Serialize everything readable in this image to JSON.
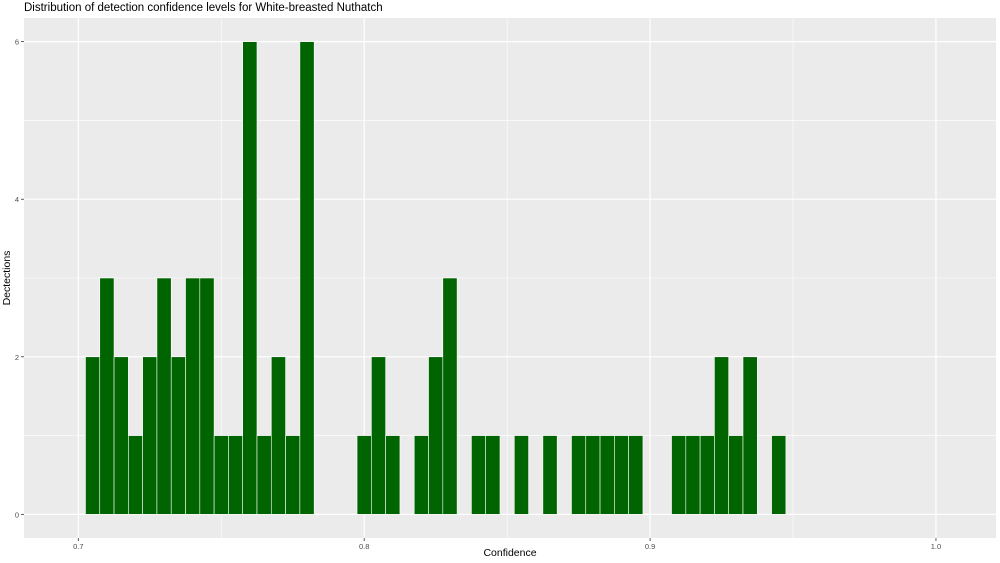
{
  "chart_data": {
    "type": "bar",
    "title": "Distribution of detection confidence levels for White-breasted Nuthatch",
    "xlabel": "Confidence",
    "ylabel": "Dectections",
    "xlim": [
      0.681,
      1.021
    ],
    "ylim": [
      -0.3,
      6.3
    ],
    "x_ticks": [
      0.7,
      0.8,
      0.9,
      1.0
    ],
    "x_tick_labels": [
      "0.7",
      "0.8",
      "0.9",
      "1.0"
    ],
    "y_ticks": [
      0,
      2,
      4,
      6
    ],
    "y_tick_labels": [
      "0",
      "2",
      "4",
      "6"
    ],
    "bin_width": 0.005,
    "grid": true,
    "bar_color": "#006400",
    "bar_outline": "#ffffff",
    "panel_background": "#ebebeb",
    "bins": [
      {
        "x": 0.705,
        "count": 2
      },
      {
        "x": 0.71,
        "count": 3
      },
      {
        "x": 0.715,
        "count": 2
      },
      {
        "x": 0.72,
        "count": 1
      },
      {
        "x": 0.725,
        "count": 2
      },
      {
        "x": 0.73,
        "count": 3
      },
      {
        "x": 0.735,
        "count": 2
      },
      {
        "x": 0.74,
        "count": 3
      },
      {
        "x": 0.745,
        "count": 3
      },
      {
        "x": 0.75,
        "count": 1
      },
      {
        "x": 0.755,
        "count": 1
      },
      {
        "x": 0.76,
        "count": 6
      },
      {
        "x": 0.765,
        "count": 1
      },
      {
        "x": 0.77,
        "count": 2
      },
      {
        "x": 0.775,
        "count": 1
      },
      {
        "x": 0.78,
        "count": 6
      },
      {
        "x": 0.8,
        "count": 1
      },
      {
        "x": 0.805,
        "count": 2
      },
      {
        "x": 0.81,
        "count": 1
      },
      {
        "x": 0.82,
        "count": 1
      },
      {
        "x": 0.825,
        "count": 2
      },
      {
        "x": 0.83,
        "count": 3
      },
      {
        "x": 0.84,
        "count": 1
      },
      {
        "x": 0.845,
        "count": 1
      },
      {
        "x": 0.855,
        "count": 1
      },
      {
        "x": 0.865,
        "count": 1
      },
      {
        "x": 0.875,
        "count": 1
      },
      {
        "x": 0.88,
        "count": 1
      },
      {
        "x": 0.885,
        "count": 1
      },
      {
        "x": 0.89,
        "count": 1
      },
      {
        "x": 0.895,
        "count": 1
      },
      {
        "x": 0.91,
        "count": 1
      },
      {
        "x": 0.915,
        "count": 1
      },
      {
        "x": 0.92,
        "count": 1
      },
      {
        "x": 0.925,
        "count": 2
      },
      {
        "x": 0.93,
        "count": 1
      },
      {
        "x": 0.935,
        "count": 2
      },
      {
        "x": 0.945,
        "count": 1
      }
    ]
  }
}
